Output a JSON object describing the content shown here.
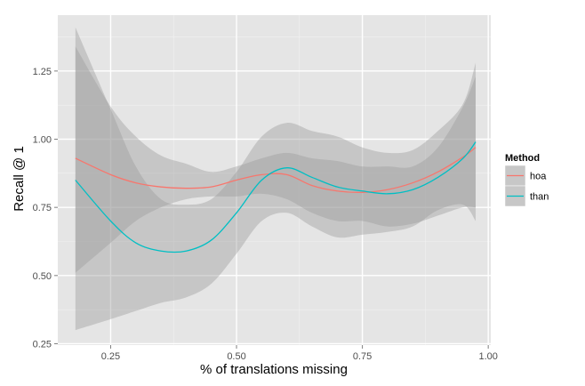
{
  "chart_data": {
    "type": "line",
    "xlabel": "% of translations missing",
    "ylabel": "Recall @ 1",
    "xlim": [
      0.145,
      1.005
    ],
    "ylim": [
      0.245,
      1.455
    ],
    "x_ticks": [
      0.25,
      0.5,
      0.75,
      1.0
    ],
    "x_tick_labels": [
      "0.25",
      "0.50",
      "0.75",
      "1.00"
    ],
    "y_ticks": [
      0.25,
      0.5,
      0.75,
      1.0,
      1.25
    ],
    "y_tick_labels": [
      "0.25",
      "0.50",
      "0.75",
      "1.00",
      "1.25"
    ],
    "grid": true,
    "legend": {
      "title": "Method",
      "position": "right"
    },
    "colors": {
      "panel": "#e5e5e5",
      "grid": "#ffffff",
      "ribbon": "#999999"
    },
    "series": [
      {
        "name": "hoa",
        "color": "#f8766d",
        "x": [
          0.18,
          0.25,
          0.3,
          0.35,
          0.4,
          0.45,
          0.5,
          0.55,
          0.6,
          0.65,
          0.7,
          0.75,
          0.8,
          0.85,
          0.9,
          0.95,
          0.975
        ],
        "y": [
          0.93,
          0.87,
          0.84,
          0.825,
          0.82,
          0.825,
          0.85,
          0.87,
          0.87,
          0.83,
          0.81,
          0.805,
          0.815,
          0.84,
          0.88,
          0.935,
          0.97
        ],
        "lower": [
          0.51,
          0.62,
          0.7,
          0.75,
          0.78,
          0.79,
          0.79,
          0.8,
          0.78,
          0.73,
          0.7,
          0.7,
          0.68,
          0.69,
          0.72,
          0.75,
          0.75
        ],
        "upper": [
          1.34,
          1.12,
          1.01,
          0.94,
          0.91,
          0.88,
          0.9,
          0.93,
          0.95,
          0.93,
          0.92,
          0.9,
          0.9,
          0.9,
          0.97,
          1.12,
          1.23
        ]
      },
      {
        "name": "than",
        "color": "#00bfc4",
        "x": [
          0.18,
          0.25,
          0.3,
          0.35,
          0.4,
          0.45,
          0.5,
          0.55,
          0.6,
          0.65,
          0.7,
          0.75,
          0.8,
          0.85,
          0.9,
          0.95,
          0.975
        ],
        "y": [
          0.85,
          0.7,
          0.62,
          0.59,
          0.59,
          0.63,
          0.73,
          0.85,
          0.895,
          0.86,
          0.825,
          0.81,
          0.8,
          0.815,
          0.86,
          0.93,
          0.99
        ],
        "lower": [
          0.3,
          0.34,
          0.37,
          0.4,
          0.42,
          0.47,
          0.58,
          0.7,
          0.73,
          0.68,
          0.64,
          0.65,
          0.66,
          0.68,
          0.74,
          0.76,
          0.7
        ],
        "upper": [
          1.41,
          1.11,
          0.9,
          0.78,
          0.76,
          0.78,
          0.88,
          1.01,
          1.06,
          1.03,
          1.01,
          0.97,
          0.95,
          0.96,
          1.03,
          1.13,
          1.28
        ]
      }
    ]
  }
}
